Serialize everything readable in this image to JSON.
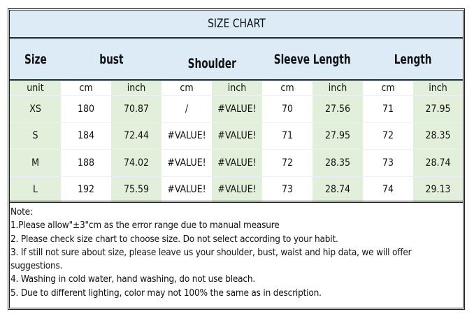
{
  "title": "SIZE CHART",
  "headers": [
    "Size",
    "bust",
    "Shoulder",
    "Sleeve Length",
    "Length"
  ],
  "units": [
    "unit",
    "cm",
    "inch",
    "cm",
    "inch",
    "cm",
    "inch",
    "cm",
    "inch"
  ],
  "rows": [
    [
      "XS",
      "180",
      "70.87",
      "/",
      "#VALUE!",
      "70",
      "27.56",
      "71",
      "27.95"
    ],
    [
      "S",
      "184",
      "72.44",
      "#VALUE!",
      "#VALUE!",
      "71",
      "27.95",
      "72",
      "28.35"
    ],
    [
      "M",
      "188",
      "74.02",
      "#VALUE!",
      "#VALUE!",
      "72",
      "28.35",
      "73",
      "28.74"
    ],
    [
      "L",
      "192",
      "75.59",
      "#VALUE!",
      "#VALUE!",
      "73",
      "28.74",
      "74",
      "29.13"
    ]
  ],
  "notes": [
    " Note:",
    "1.Please allow\"±3\"cm as the error range due to manual measure",
    "2. Please check size chart to choose size. Do not select according to your habit.",
    "3. If still not sure about size, please leave us your shoulder, bust, waist and hip data, we will offer",
    "suggestions.",
    "4. Washing in cold water, hand washing, do not use bleach.",
    "5. Due to different lighting, color may not 100% the same as in description."
  ],
  "colors": {
    "header_bg": "#ddebf7",
    "alt_col_bg": "#e2efda"
  }
}
